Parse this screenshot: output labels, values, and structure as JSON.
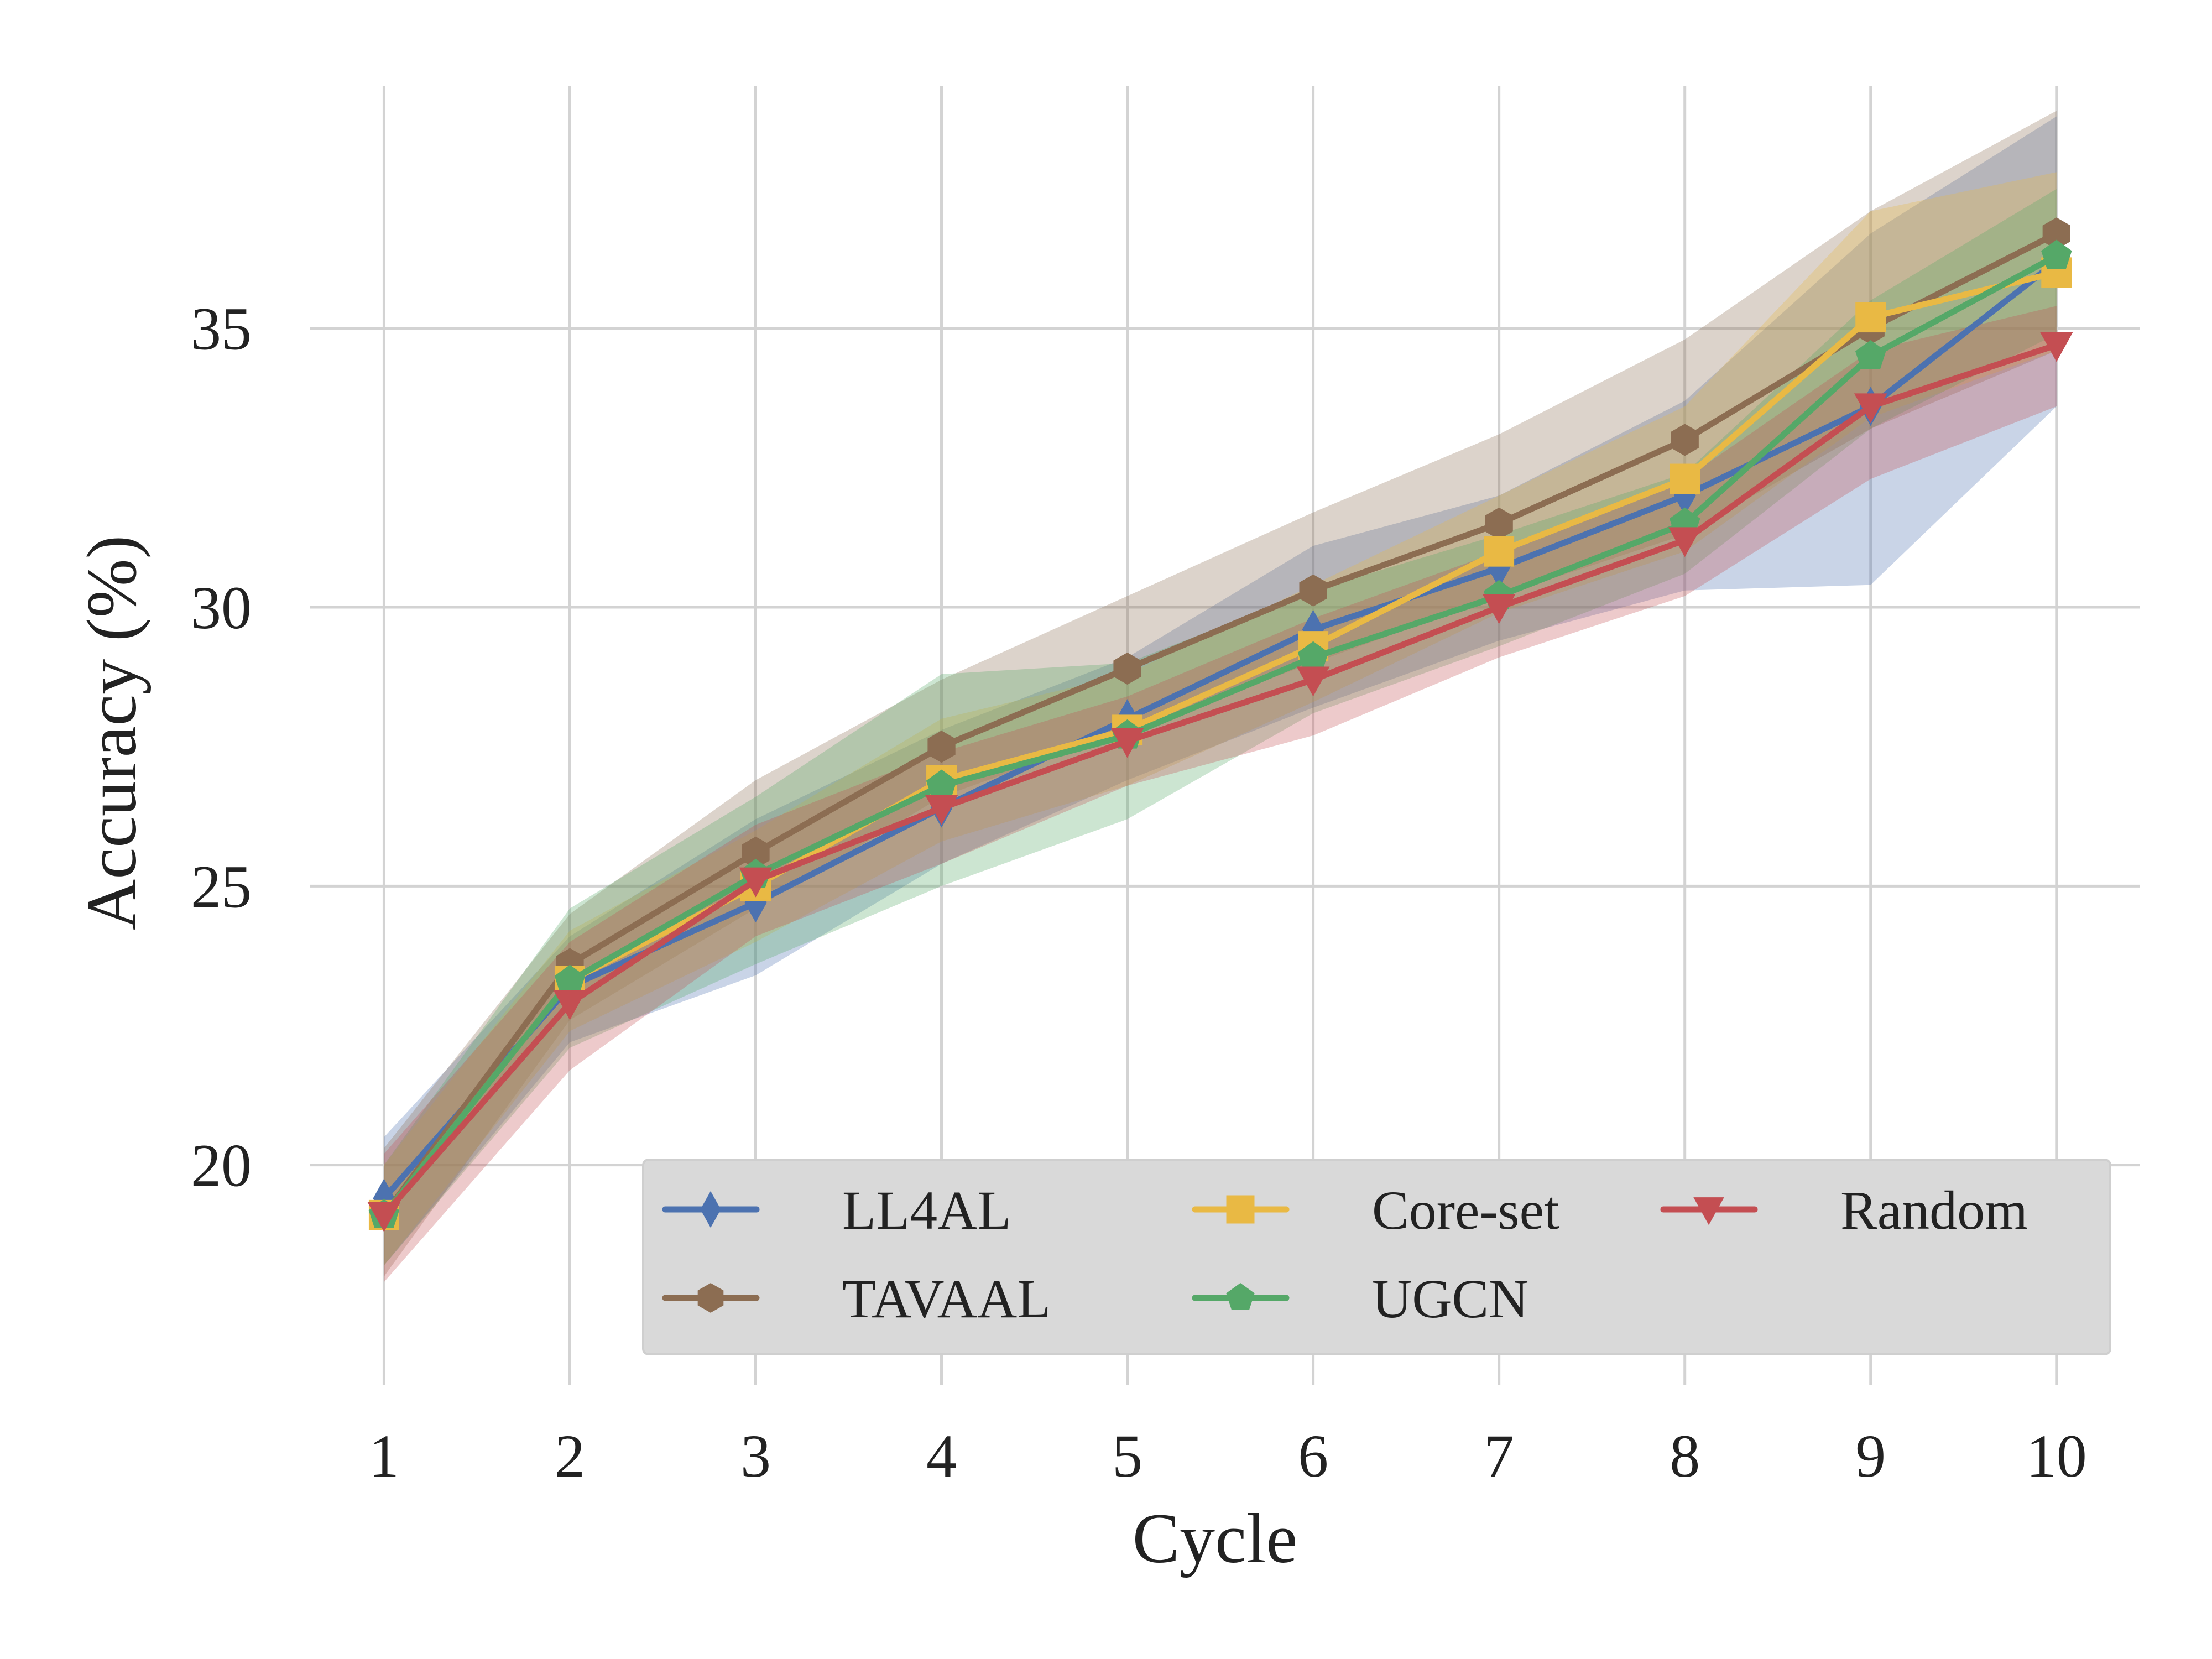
{
  "chart_data": {
    "type": "line",
    "xlabel": "Cycle",
    "ylabel": "Accuracy (%)",
    "x": [
      1,
      2,
      3,
      4,
      5,
      6,
      7,
      8,
      9,
      10
    ],
    "xlim": [
      0.6,
      10.45
    ],
    "ylim": [
      16.05,
      39.35
    ],
    "yticks": [
      20,
      25,
      30,
      35
    ],
    "grid": true,
    "legend": {
      "position": "bottom-right",
      "columns": 3,
      "background": "#d9d9d9"
    },
    "series": [
      {
        "name": "LL4AL",
        "color": "#4c72b0",
        "marker": "thin-diamond",
        "values": [
          19.4,
          23.2,
          24.7,
          26.4,
          28.0,
          29.6,
          30.7,
          32.0,
          33.6,
          36.2
        ],
        "band_lower": [
          18.2,
          22.2,
          23.4,
          25.4,
          26.9,
          28.2,
          29.4,
          30.3,
          30.4,
          33.6
        ],
        "band_upper": [
          20.5,
          24.1,
          26.2,
          27.8,
          29.1,
          31.1,
          32.0,
          33.7,
          36.7,
          38.8
        ]
      },
      {
        "name": "TAVAAL",
        "color": "#8c6d52",
        "marker": "hexagon",
        "values": [
          19.1,
          23.6,
          25.6,
          27.5,
          28.9,
          30.3,
          31.5,
          33.0,
          35.0,
          36.7
        ],
        "band_lower": [
          18.0,
          22.6,
          24.6,
          26.6,
          27.8,
          29.0,
          30.2,
          31.3,
          33.2,
          34.6
        ],
        "band_upper": [
          20.3,
          24.5,
          26.9,
          28.7,
          30.2,
          31.7,
          33.1,
          34.8,
          37.1,
          38.9
        ]
      },
      {
        "name": "Core-set",
        "color": "#e9b944",
        "marker": "square",
        "values": [
          19.1,
          23.3,
          25.0,
          26.9,
          27.8,
          29.3,
          31.0,
          32.3,
          35.2,
          36.0
        ],
        "band_lower": [
          18.2,
          22.4,
          24.0,
          25.8,
          26.8,
          28.3,
          29.9,
          31.0,
          33.4,
          34.6
        ],
        "band_upper": [
          20.0,
          24.2,
          26.0,
          28.0,
          28.8,
          30.4,
          32.0,
          33.6,
          37.1,
          37.8
        ]
      },
      {
        "name": "UGCN",
        "color": "#55a868",
        "marker": "pentagon",
        "values": [
          19.1,
          23.3,
          25.2,
          26.8,
          27.7,
          29.1,
          30.2,
          31.5,
          34.5,
          36.3
        ],
        "band_lower": [
          18.2,
          22.1,
          23.6,
          25.0,
          26.2,
          28.1,
          29.3,
          30.6,
          33.2,
          34.9
        ],
        "band_upper": [
          20.0,
          24.6,
          26.6,
          28.8,
          29.0,
          30.3,
          31.3,
          32.4,
          35.5,
          37.5
        ]
      },
      {
        "name": "Random",
        "color": "#c44e52",
        "marker": "triangle-down",
        "values": [
          19.1,
          22.9,
          25.1,
          26.4,
          27.6,
          28.7,
          30.0,
          31.2,
          33.6,
          34.7
        ],
        "band_lower": [
          17.9,
          21.7,
          24.1,
          25.4,
          26.8,
          27.7,
          29.1,
          30.2,
          32.3,
          33.6
        ],
        "band_upper": [
          20.2,
          24.0,
          26.1,
          27.4,
          28.4,
          29.8,
          31.0,
          32.3,
          34.6,
          35.4
        ]
      }
    ],
    "band_draw_order": [
      "LL4AL",
      "TAVAAL",
      "Core-set",
      "UGCN",
      "Random"
    ],
    "line_draw_order": [
      "LL4AL",
      "TAVAAL",
      "Core-set",
      "UGCN",
      "Random"
    ],
    "legend_order": [
      "LL4AL",
      "TAVAAL",
      "Core-set",
      "UGCN",
      "Random"
    ]
  }
}
